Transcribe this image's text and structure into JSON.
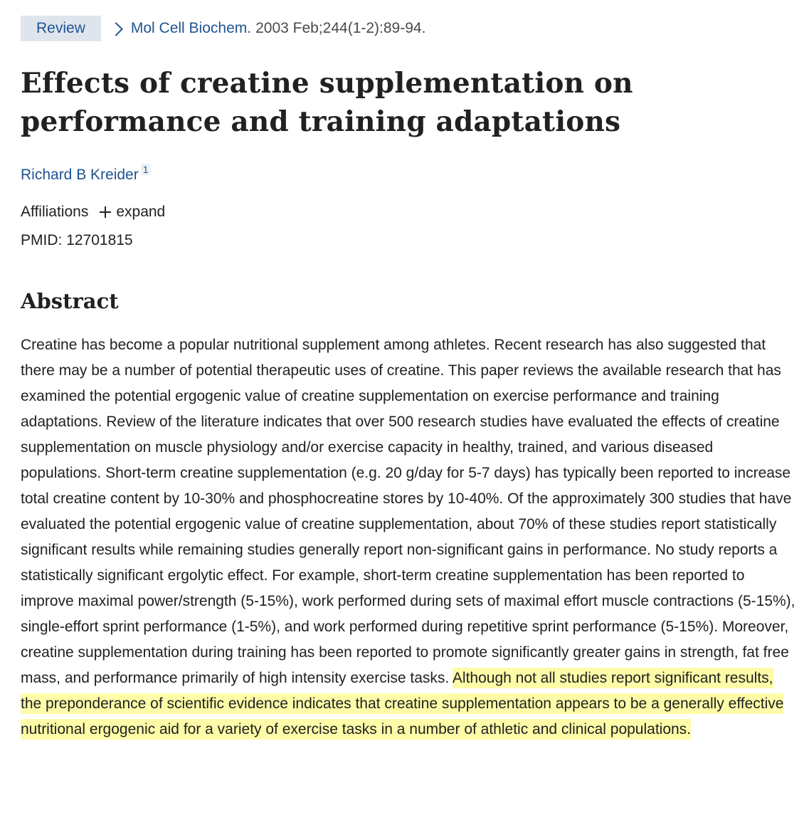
{
  "header": {
    "badge": "Review",
    "journal": "Mol Cell Biochem.",
    "citation": "2003 Feb;244(1-2):89-94."
  },
  "article": {
    "title": "Effects of creatine supplementation on performance and training adaptations",
    "author": "Richard B Kreider",
    "author_sup": "1",
    "affiliations_label": "Affiliations",
    "expand_label": "expand",
    "pmid": "PMID: 12701815"
  },
  "abstract": {
    "heading": "Abstract",
    "text": "Creatine has become a popular nutritional supplement among athletes. Recent research has also suggested that there may be a number of potential therapeutic uses of creatine. This paper reviews the available research that has examined the potential ergogenic value of creatine supplementation on exercise performance and training adaptations. Review of the literature indicates that over 500 research studies have evaluated the effects of creatine supplementation on muscle physiology and/or exercise capacity in healthy, trained, and various diseased populations. Short-term creatine supplementation (e.g. 20 g/day for 5-7 days) has typically been reported to increase total creatine content by 10-30% and phosphocreatine stores by 10-40%. Of the approximately 300 studies that have evaluated the potential ergogenic value of creatine supplementation, about 70% of these studies report statistically significant results while remaining studies generally report non-significant gains in performance. No study reports a statistically significant ergolytic effect. For example, short-term creatine supplementation has been reported to improve maximal power/strength (5-15%), work performed during sets of maximal effort muscle contractions (5-15%), single-effort sprint performance (1-5%), and work performed during repetitive sprint performance (5-15%). Moreover, creatine supplementation during training has been reported to promote significantly greater gains in strength, fat free mass, and performance primarily of high intensity exercise tasks. ",
    "highlighted": "Although not all studies report significant results, the preponderance of scientific evidence indicates that creatine supplementation appears to be a generally effective nutritional ergogenic aid for a variety of exercise tasks in a number of athletic and clinical populations."
  },
  "colors": {
    "link": "#205493",
    "badge_bg": "#dfe5ec",
    "highlight": "#fefca8",
    "text": "#212121"
  }
}
